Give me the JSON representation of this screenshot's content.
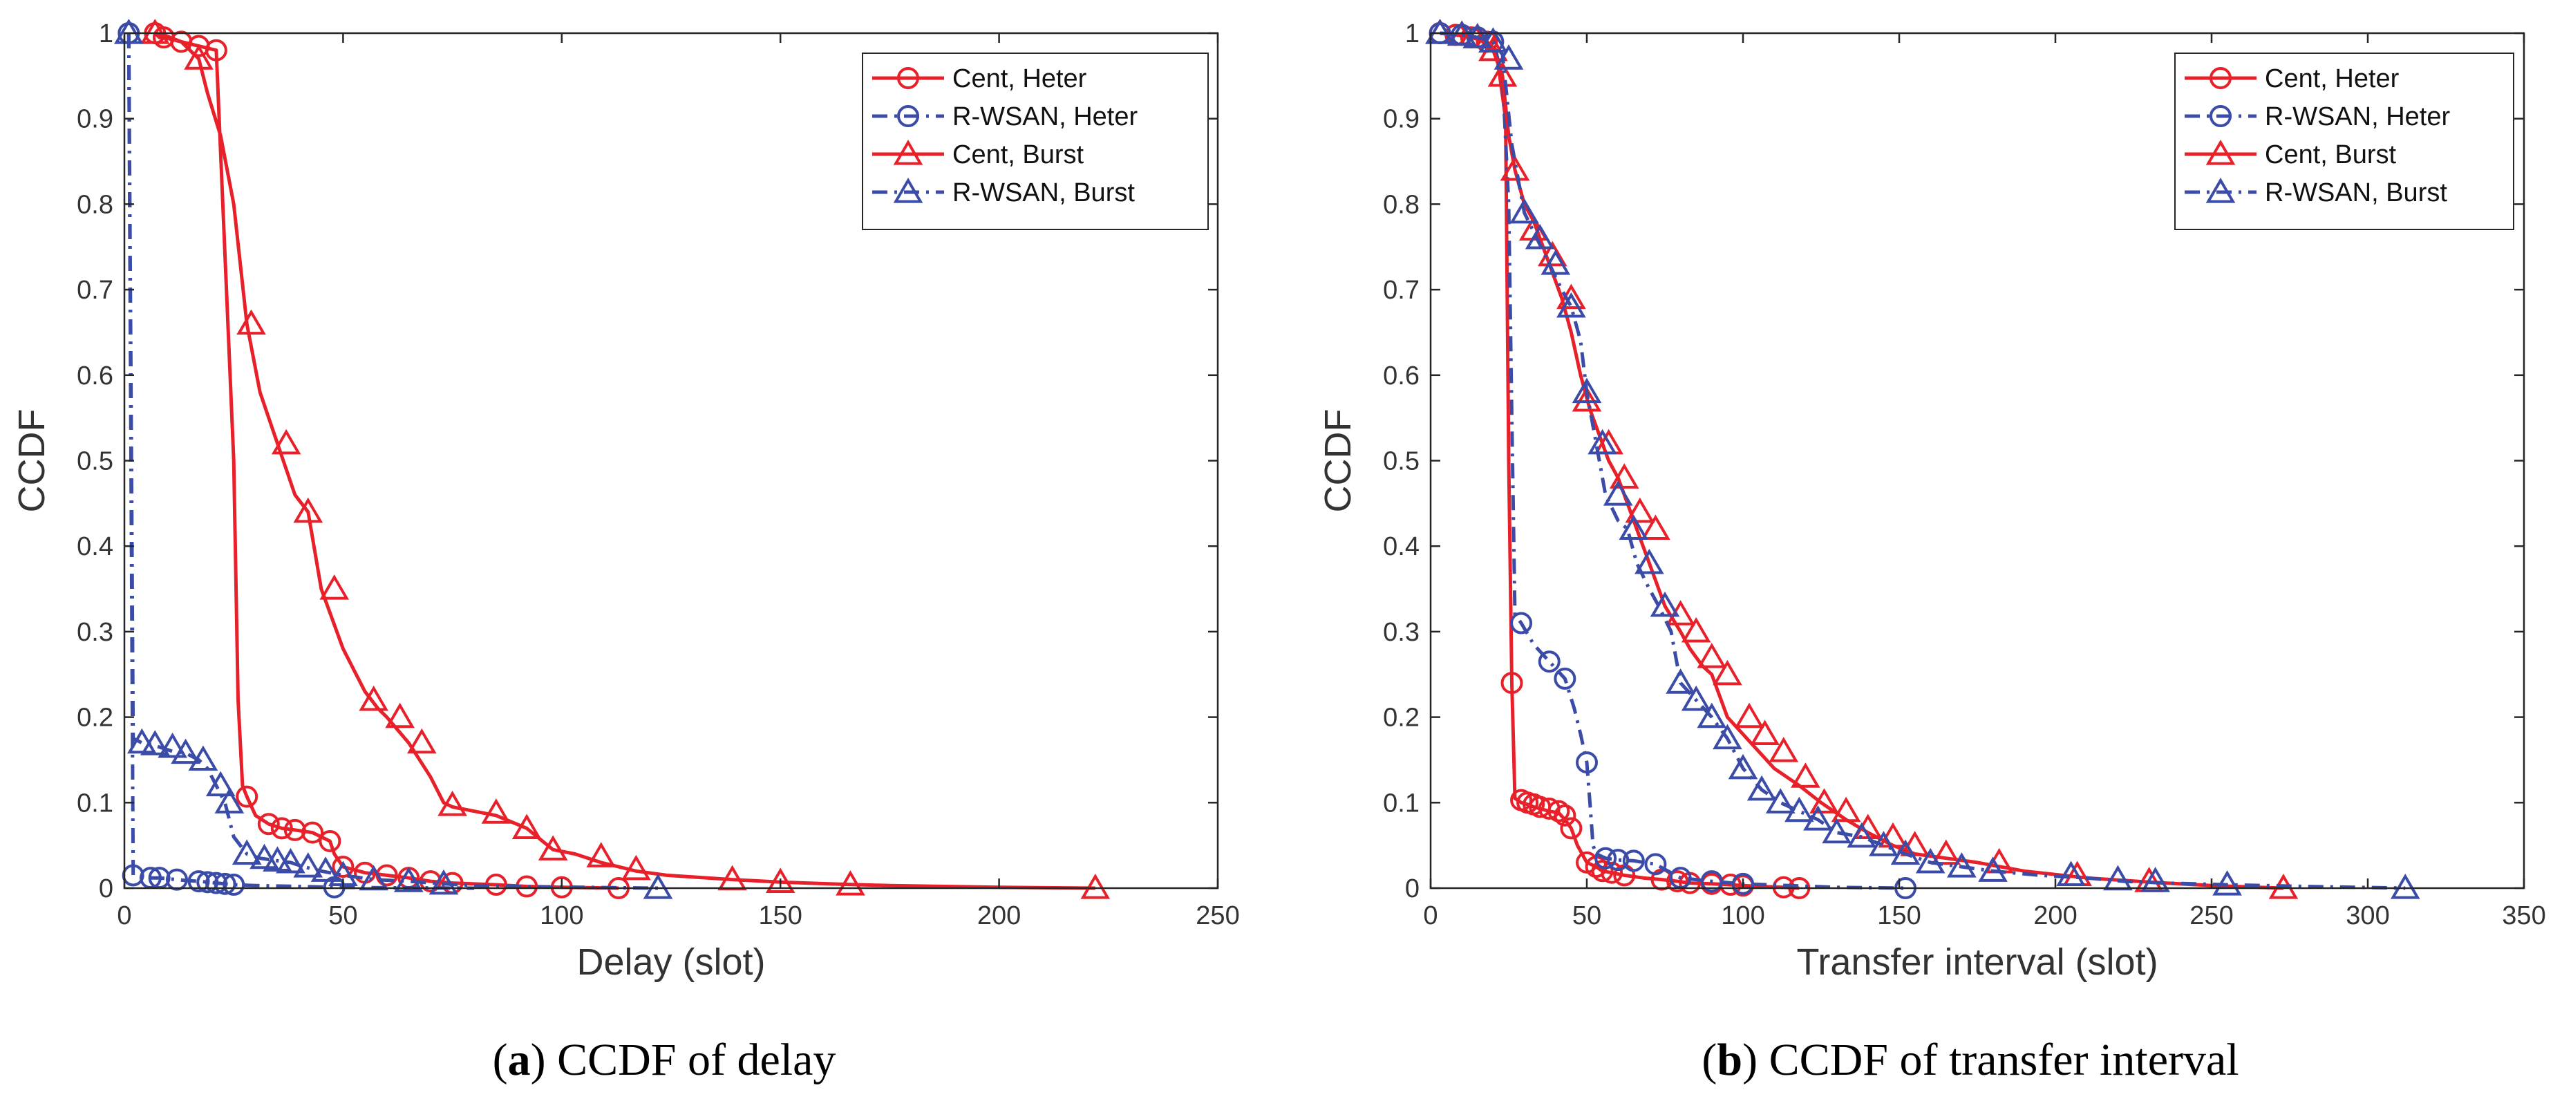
{
  "chart_data": [
    {
      "id": "a",
      "type": "line",
      "caption_letter": "a",
      "caption_text": " CCDF of delay",
      "xlabel": "Delay (slot)",
      "ylabel": "CCDF",
      "xlim": [
        0,
        250
      ],
      "ylim": [
        0,
        1
      ],
      "xticks": [
        "0",
        "50",
        "100",
        "150",
        "200",
        "250"
      ],
      "yticks": [
        "0",
        "0.1",
        "0.2",
        "0.3",
        "0.4",
        "0.5",
        "0.6",
        "0.7",
        "0.8",
        "0.9",
        "1"
      ],
      "legend_position": "top-right",
      "series": [
        {
          "name": "Cent, Heter",
          "color": "#e8202a",
          "dash": "solid",
          "marker": "circle",
          "x": [
            7,
            8,
            9,
            13,
            17,
            21,
            25,
            26,
            27,
            28,
            30,
            33,
            36,
            39,
            43,
            47,
            48,
            50,
            55,
            60,
            65,
            70,
            75,
            85,
            92,
            100,
            113
          ],
          "y": [
            1.0,
            0.995,
            0.995,
            0.99,
            0.985,
            0.98,
            0.5,
            0.22,
            0.12,
            0.107,
            0.085,
            0.075,
            0.07,
            0.068,
            0.065,
            0.055,
            0.04,
            0.025,
            0.018,
            0.015,
            0.012,
            0.008,
            0.006,
            0.004,
            0.002,
            0.001,
            0.0
          ],
          "marker_x": [
            7,
            9,
            13,
            17,
            21,
            28,
            33,
            36,
            39,
            43,
            47,
            50,
            55,
            60,
            65,
            70,
            75,
            85,
            92,
            100,
            113
          ],
          "marker_y": [
            1.0,
            0.995,
            0.99,
            0.985,
            0.98,
            0.107,
            0.075,
            0.07,
            0.068,
            0.065,
            0.055,
            0.025,
            0.018,
            0.015,
            0.012,
            0.008,
            0.006,
            0.004,
            0.002,
            0.001,
            0.0
          ]
        },
        {
          "name": "R-WSAN, Heter",
          "color": "#3b4ba8",
          "dash": "dashdot",
          "marker": "circle",
          "x": [
            1,
            1.5,
            2,
            4,
            6,
            8,
            10,
            12,
            14,
            17,
            19,
            21,
            23,
            25,
            30,
            40,
            48,
            60,
            80
          ],
          "y": [
            1.0,
            0.5,
            0.015,
            0.013,
            0.012,
            0.012,
            0.011,
            0.01,
            0.009,
            0.008,
            0.007,
            0.006,
            0.005,
            0.004,
            0.003,
            0.002,
            0.001,
            0.0005,
            0.0
          ],
          "marker_x": [
            1,
            2,
            6,
            8,
            12,
            17,
            19,
            21,
            23,
            25,
            48
          ],
          "marker_y": [
            1.0,
            0.015,
            0.012,
            0.012,
            0.01,
            0.008,
            0.007,
            0.006,
            0.005,
            0.004,
            0.001
          ]
        },
        {
          "name": "Cent, Burst",
          "color": "#e8202a",
          "dash": "solid",
          "marker": "triangle",
          "x": [
            7,
            9,
            13,
            17,
            19,
            22,
            25,
            28,
            31,
            35,
            39,
            42,
            45,
            50,
            55,
            58,
            60,
            65,
            70,
            73,
            75,
            80,
            85,
            92,
            98,
            103,
            109,
            117,
            124,
            139,
            150,
            161,
            175,
            200,
            222
          ],
          "y": [
            1.0,
            0.998,
            0.99,
            0.97,
            0.93,
            0.88,
            0.8,
            0.66,
            0.58,
            0.52,
            0.46,
            0.44,
            0.35,
            0.28,
            0.23,
            0.21,
            0.2,
            0.17,
            0.13,
            0.1,
            0.095,
            0.09,
            0.085,
            0.07,
            0.045,
            0.04,
            0.03,
            0.02,
            0.015,
            0.01,
            0.007,
            0.005,
            0.003,
            0.001,
            0.0
          ],
          "marker_x": [
            7,
            17,
            29,
            37,
            42,
            48,
            57,
            63,
            68,
            75,
            85,
            92,
            98,
            109,
            117,
            139,
            150,
            166,
            222
          ],
          "marker_y": [
            1.0,
            0.97,
            0.66,
            0.52,
            0.44,
            0.35,
            0.22,
            0.2,
            0.17,
            0.097,
            0.088,
            0.07,
            0.045,
            0.037,
            0.022,
            0.01,
            0.007,
            0.004,
            0.0
          ]
        },
        {
          "name": "R-WSAN, Burst",
          "color": "#3b4ba8",
          "dash": "dashdot",
          "marker": "triangle",
          "x": [
            1,
            1.5,
            2,
            4,
            6,
            8,
            11,
            14,
            17,
            19,
            21,
            23,
            25,
            28,
            31,
            35,
            38,
            41,
            45,
            50,
            57,
            65,
            73,
            80,
            90,
            105,
            122
          ],
          "y": [
            1.0,
            0.6,
            0.175,
            0.17,
            0.168,
            0.165,
            0.16,
            0.158,
            0.15,
            0.14,
            0.12,
            0.1,
            0.06,
            0.04,
            0.035,
            0.032,
            0.03,
            0.025,
            0.02,
            0.015,
            0.01,
            0.008,
            0.005,
            0.003,
            0.002,
            0.001,
            0.0
          ],
          "marker_x": [
            1,
            4,
            7,
            11,
            14,
            18,
            22,
            24,
            28,
            32,
            35,
            38,
            42,
            46,
            50,
            57,
            65,
            73,
            122
          ],
          "marker_y": [
            1.0,
            0.17,
            0.168,
            0.165,
            0.158,
            0.15,
            0.12,
            0.1,
            0.04,
            0.035,
            0.032,
            0.03,
            0.025,
            0.02,
            0.015,
            0.01,
            0.008,
            0.005,
            0.0
          ]
        }
      ]
    },
    {
      "id": "b",
      "type": "line",
      "caption_letter": "b",
      "caption_text": " CCDF of transfer interval",
      "xlabel": "Transfer interval (slot)",
      "ylabel": "CCDF",
      "xlim": [
        0,
        350
      ],
      "ylim": [
        0,
        1
      ],
      "xticks": [
        "0",
        "50",
        "100",
        "150",
        "200",
        "250",
        "300",
        "350"
      ],
      "yticks": [
        "0",
        "0.1",
        "0.2",
        "0.3",
        "0.4",
        "0.5",
        "0.6",
        "0.7",
        "0.8",
        "0.9",
        "1"
      ],
      "legend_position": "top-right",
      "series": [
        {
          "name": "Cent, Heter",
          "color": "#e8202a",
          "dash": "solid",
          "marker": "circle",
          "x": [
            3,
            8,
            13,
            18,
            21,
            24,
            25,
            26,
            27,
            29,
            31,
            33,
            35,
            38,
            41,
            43,
            45,
            47,
            50,
            53,
            55,
            58,
            62,
            68,
            74,
            79,
            83,
            90,
            96,
            100,
            105,
            113,
            118
          ],
          "y": [
            1.0,
            0.998,
            0.995,
            0.99,
            0.98,
            0.9,
            0.5,
            0.24,
            0.105,
            0.1,
            0.098,
            0.095,
            0.093,
            0.09,
            0.088,
            0.08,
            0.07,
            0.05,
            0.03,
            0.025,
            0.02,
            0.018,
            0.015,
            0.012,
            0.01,
            0.008,
            0.006,
            0.005,
            0.004,
            0.003,
            0.002,
            0.001,
            0.0
          ],
          "marker_x": [
            3,
            8,
            13,
            18,
            26,
            29,
            31,
            33,
            35,
            38,
            41,
            43,
            45,
            50,
            53,
            55,
            58,
            62,
            74,
            79,
            83,
            90,
            96,
            100,
            113,
            118
          ],
          "marker_y": [
            1.0,
            0.998,
            0.995,
            0.99,
            0.24,
            0.103,
            0.1,
            0.098,
            0.095,
            0.093,
            0.09,
            0.085,
            0.07,
            0.03,
            0.025,
            0.02,
            0.018,
            0.015,
            0.01,
            0.008,
            0.006,
            0.005,
            0.004,
            0.003,
            0.001,
            0.0
          ]
        },
        {
          "name": "R-WSAN, Heter",
          "color": "#3b4ba8",
          "dash": "dashdot",
          "marker": "circle",
          "x": [
            3,
            10,
            15,
            20,
            23,
            25,
            26,
            27,
            29,
            33,
            38,
            43,
            46,
            48,
            50,
            51,
            52,
            53,
            56,
            60,
            65,
            72,
            80,
            90,
            100,
            115,
            130,
            152
          ],
          "y": [
            1.0,
            0.998,
            0.995,
            0.99,
            0.95,
            0.8,
            0.55,
            0.32,
            0.31,
            0.285,
            0.265,
            0.245,
            0.21,
            0.18,
            0.147,
            0.1,
            0.05,
            0.04,
            0.035,
            0.033,
            0.032,
            0.028,
            0.012,
            0.008,
            0.005,
            0.003,
            0.001,
            0.0
          ],
          "marker_x": [
            3,
            10,
            15,
            20,
            29,
            38,
            43,
            50,
            56,
            60,
            65,
            72,
            80,
            90,
            100,
            152
          ],
          "marker_y": [
            1.0,
            0.998,
            0.995,
            0.99,
            0.31,
            0.265,
            0.245,
            0.147,
            0.035,
            0.033,
            0.032,
            0.028,
            0.012,
            0.008,
            0.005,
            0.0
          ]
        },
        {
          "name": "Cent, Burst",
          "color": "#e8202a",
          "dash": "solid",
          "marker": "triangle",
          "x": [
            3,
            10,
            15,
            20,
            23,
            25,
            27,
            30,
            33,
            36,
            39,
            42,
            45,
            48,
            51,
            54,
            57,
            60,
            63,
            66,
            70,
            75,
            80,
            83,
            87,
            90,
            95,
            100,
            105,
            110,
            118,
            125,
            133,
            140,
            148,
            155,
            165,
            175,
            190,
            210,
            230,
            250,
            273
          ],
          "y": [
            1.0,
            0.998,
            0.995,
            0.98,
            0.95,
            0.88,
            0.84,
            0.8,
            0.78,
            0.75,
            0.72,
            0.69,
            0.65,
            0.6,
            0.56,
            0.53,
            0.5,
            0.48,
            0.45,
            0.42,
            0.38,
            0.33,
            0.3,
            0.28,
            0.26,
            0.25,
            0.2,
            0.18,
            0.16,
            0.14,
            0.12,
            0.1,
            0.08,
            0.065,
            0.05,
            0.04,
            0.035,
            0.03,
            0.02,
            0.012,
            0.007,
            0.003,
            0.0
          ],
          "marker_x": [
            3,
            10,
            15,
            20,
            23,
            27,
            33,
            39,
            45,
            50,
            57,
            62,
            67,
            72,
            80,
            85,
            90,
            95,
            102,
            107,
            113,
            120,
            126,
            133,
            140,
            148,
            155,
            165,
            182,
            207,
            230,
            273
          ],
          "marker_y": [
            1.0,
            0.998,
            0.995,
            0.98,
            0.95,
            0.84,
            0.77,
            0.74,
            0.69,
            0.57,
            0.52,
            0.48,
            0.44,
            0.42,
            0.32,
            0.3,
            0.27,
            0.25,
            0.2,
            0.18,
            0.16,
            0.13,
            0.1,
            0.09,
            0.07,
            0.06,
            0.05,
            0.04,
            0.03,
            0.015,
            0.008,
            0.0
          ]
        },
        {
          "name": "R-WSAN, Burst",
          "color": "#3b4ba8",
          "dash": "dashdot",
          "marker": "triangle",
          "x": [
            3,
            10,
            15,
            20,
            23,
            26,
            30,
            34,
            38,
            42,
            45,
            48,
            50,
            53,
            56,
            60,
            63,
            66,
            70,
            73,
            77,
            80,
            85,
            90,
            95,
            100,
            106,
            112,
            118,
            124,
            130,
            138,
            145,
            152,
            160,
            170,
            180,
            195,
            210,
            222,
            235,
            255,
            280,
            312
          ],
          "y": [
            1.0,
            0.998,
            0.995,
            0.99,
            0.975,
            0.87,
            0.79,
            0.76,
            0.73,
            0.7,
            0.68,
            0.64,
            0.58,
            0.52,
            0.46,
            0.43,
            0.42,
            0.38,
            0.35,
            0.33,
            0.3,
            0.24,
            0.22,
            0.2,
            0.175,
            0.14,
            0.115,
            0.1,
            0.09,
            0.08,
            0.065,
            0.06,
            0.05,
            0.04,
            0.03,
            0.025,
            0.02,
            0.015,
            0.012,
            0.008,
            0.006,
            0.004,
            0.002,
            0.0
          ],
          "marker_x": [
            3,
            10,
            15,
            20,
            25,
            30,
            35,
            40,
            45,
            50,
            55,
            60,
            65,
            70,
            75,
            80,
            85,
            90,
            95,
            100,
            106,
            112,
            118,
            124,
            130,
            138,
            145,
            152,
            160,
            170,
            180,
            205,
            220,
            232,
            255,
            312
          ],
          "marker_y": [
            1.0,
            0.998,
            0.995,
            0.99,
            0.97,
            0.79,
            0.76,
            0.73,
            0.68,
            0.58,
            0.52,
            0.46,
            0.42,
            0.38,
            0.33,
            0.24,
            0.22,
            0.2,
            0.175,
            0.14,
            0.115,
            0.1,
            0.09,
            0.08,
            0.065,
            0.06,
            0.05,
            0.04,
            0.03,
            0.025,
            0.02,
            0.015,
            0.01,
            0.008,
            0.004,
            0.0
          ]
        }
      ]
    }
  ]
}
